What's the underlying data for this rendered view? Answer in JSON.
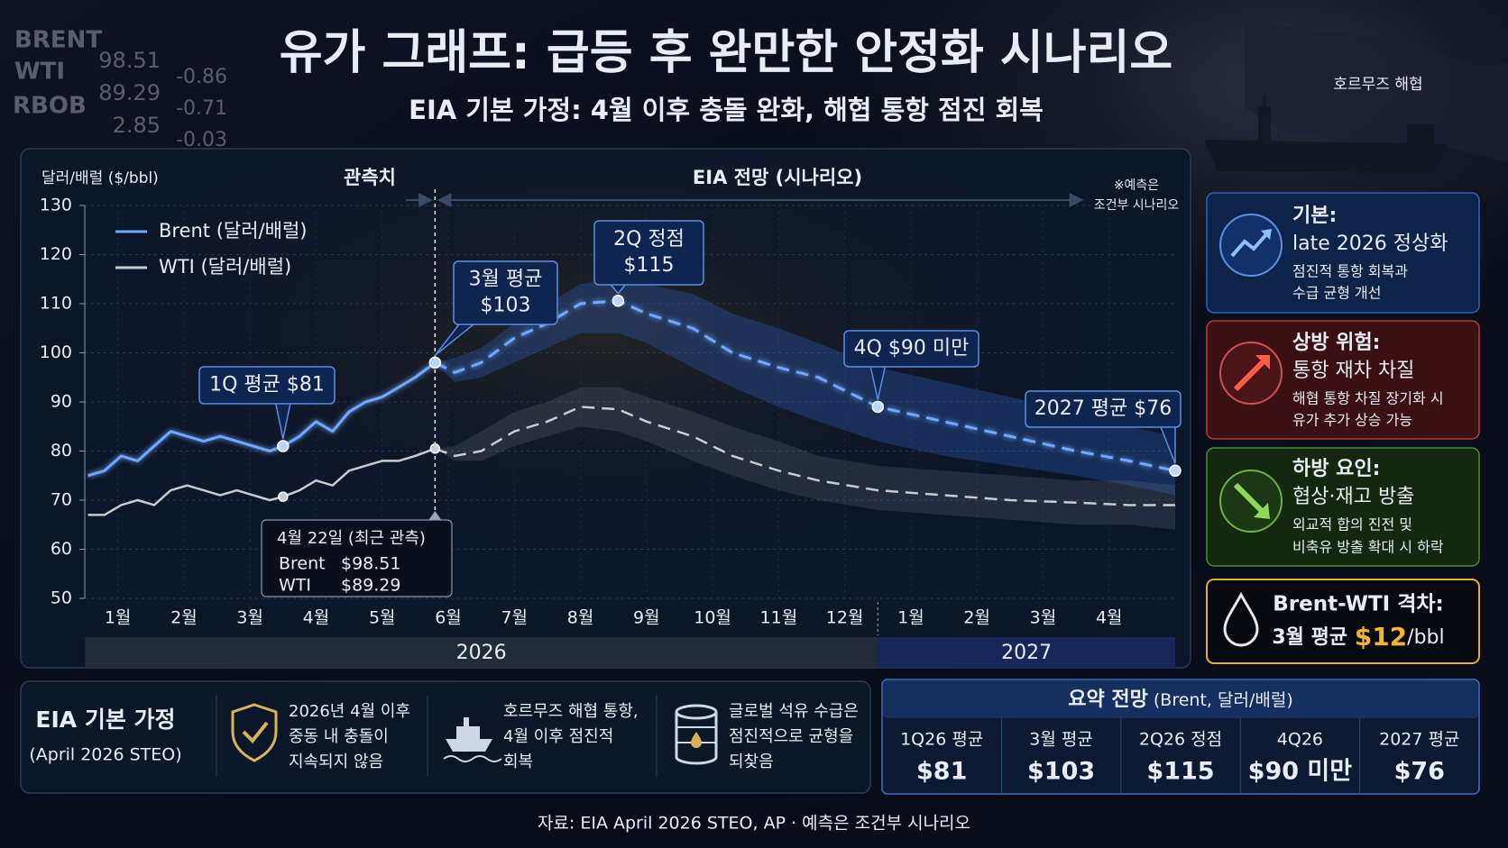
{
  "header": {
    "title": "유가 그래프: 급등 후 완만한 안정화 시나리오",
    "subtitle": "EIA 기본 가정: 4월 이후 충돌 완화, 해협 통항 점진 회복",
    "map_label": "호르무즈 해협"
  },
  "ticker": {
    "names": [
      "BRENT",
      "WTI",
      "RBOB"
    ],
    "prices": [
      "98.51",
      "89.29",
      "2.85"
    ],
    "changes": [
      "-0.86",
      "-0.71",
      "-0.03"
    ]
  },
  "chart_data": {
    "type": "line",
    "y_label": "달러/배럴 ($/bbl)",
    "observed_label": "관측치",
    "forecast_label": "EIA 전망 (시나리오)",
    "note": [
      "※예측은",
      "조건부 시나리오"
    ],
    "forecast_start": 5.8,
    "x": [
      0.55,
      0.8,
      1.05,
      1.3,
      1.55,
      1.8,
      2.05,
      2.3,
      2.55,
      2.8,
      3.05,
      3.3,
      3.5,
      3.75,
      4.0,
      4.25,
      4.5,
      4.75,
      5.0,
      5.25,
      5.5,
      5.8,
      6.1,
      6.5,
      7.0,
      7.5,
      8.0,
      8.57,
      9.0,
      9.7,
      10.3,
      11.0,
      11.6,
      12.5,
      13.5,
      14.5,
      15.5,
      16.3,
      17.0
    ],
    "xlim": [
      0.5,
      17.0
    ],
    "xticks": [
      {
        "value": 1,
        "label": "1월"
      },
      {
        "value": 2,
        "label": "2월"
      },
      {
        "value": 3,
        "label": "3월"
      },
      {
        "value": 4,
        "label": "4월"
      },
      {
        "value": 5,
        "label": "5월"
      },
      {
        "value": 6,
        "label": "6월"
      },
      {
        "value": 7,
        "label": "7월"
      },
      {
        "value": 8,
        "label": "8월"
      },
      {
        "value": 9,
        "label": "9월"
      },
      {
        "value": 10,
        "label": "10월"
      },
      {
        "value": 11,
        "label": "11월"
      },
      {
        "value": 12,
        "label": "12월"
      },
      {
        "value": 13,
        "label": "1월"
      },
      {
        "value": 14,
        "label": "2월"
      },
      {
        "value": 15,
        "label": "3월"
      },
      {
        "value": 16,
        "label": "4월"
      }
    ],
    "year_bands": [
      {
        "label": "2026",
        "from": 0.5,
        "to": 12.5
      },
      {
        "label": "2027",
        "from": 12.5,
        "to": 17.0
      }
    ],
    "ylim": [
      50,
      130
    ],
    "yticks": [
      50,
      60,
      70,
      80,
      90,
      100,
      110,
      120,
      130
    ],
    "grid": true,
    "legend": "upper left",
    "series": [
      {
        "name": "Brent (달러/배럴)",
        "color": "#6fa8ff",
        "values": [
          75,
          76,
          79,
          78,
          81,
          84,
          83,
          82,
          83,
          82,
          81,
          80,
          81,
          83,
          86,
          84,
          88,
          90,
          91,
          93,
          95,
          98,
          96,
          98,
          103,
          106,
          110,
          110.6,
          108,
          105,
          100,
          97,
          95,
          89,
          86,
          83,
          80,
          78,
          76
        ],
        "band_upper": [
          null,
          null,
          null,
          null,
          null,
          null,
          null,
          null,
          null,
          null,
          null,
          null,
          null,
          null,
          null,
          null,
          null,
          null,
          null,
          null,
          null,
          98,
          99,
          101,
          106,
          110,
          114,
          115,
          114,
          112,
          108,
          105,
          102,
          97,
          94,
          91,
          88,
          85,
          83
        ],
        "band_lower": [
          null,
          null,
          null,
          null,
          null,
          null,
          null,
          null,
          null,
          null,
          null,
          null,
          null,
          null,
          null,
          null,
          null,
          null,
          null,
          null,
          null,
          98,
          94,
          95,
          98,
          101,
          104,
          104,
          102,
          97,
          93,
          89,
          86,
          82,
          79,
          77,
          75,
          73,
          71
        ]
      },
      {
        "name": "WTI (달러/배럴)",
        "color": "#c9cbd0",
        "values": [
          67,
          67,
          69,
          70,
          69,
          72,
          73,
          72,
          71,
          72,
          71,
          70,
          70.7,
          72,
          74,
          73,
          76,
          77,
          78,
          78,
          79,
          80.5,
          79,
          80,
          84,
          86,
          89,
          88.5,
          86,
          83,
          79,
          76,
          74,
          72,
          71,
          70,
          69.5,
          69,
          69
        ],
        "band_upper": [
          null,
          null,
          null,
          null,
          null,
          null,
          null,
          null,
          null,
          null,
          null,
          null,
          null,
          null,
          null,
          null,
          null,
          null,
          null,
          null,
          null,
          80.5,
          81,
          84,
          88,
          90,
          93,
          93,
          91,
          88,
          85,
          82,
          79,
          77,
          76,
          75,
          74,
          74,
          73
        ],
        "band_lower": [
          null,
          null,
          null,
          null,
          null,
          null,
          null,
          null,
          null,
          null,
          null,
          null,
          null,
          null,
          null,
          null,
          null,
          null,
          null,
          null,
          null,
          80.5,
          78,
          78,
          81,
          83,
          85,
          84,
          82,
          78,
          75,
          72,
          70,
          68,
          67,
          66,
          65,
          65,
          64
        ]
      }
    ],
    "annotations": [
      [
        "1Q 평균 $81"
      ],
      [
        "3월 평균",
        "$103"
      ],
      [
        "2Q 정점",
        "$115"
      ],
      [
        "4Q $90 미만"
      ],
      [
        "2027 평균 $76"
      ]
    ],
    "tooltip": {
      "title": "4월 22일 (최근 관측)",
      "rows": [
        [
          "Brent",
          "$98.51"
        ],
        [
          "WTI",
          "$89.29"
        ]
      ]
    }
  },
  "cards": [
    {
      "title": "기본:",
      "headline": "late 2026 정상화",
      "lines": [
        "점진적 통항 회복과",
        "수급 균형 개선"
      ]
    },
    {
      "title": "상방 위험:",
      "headline": "통항 재차 차질",
      "lines": [
        "해협 통항 차질 장기화 시",
        "유가 추가 상승 가능"
      ]
    },
    {
      "title": "하방 요인:",
      "headline": "협상·재고 방출",
      "lines": [
        "외교적 합의 진전 및",
        "비축유 방출 확대 시 하락"
      ]
    }
  ],
  "spread": {
    "title": "Brent-WTI 격차:",
    "prefix": "3월 평균 ",
    "value": "$12",
    "unit": "/bbl"
  },
  "assumptions": {
    "title": "EIA 기본 가정",
    "source": "(April 2026 STEO)",
    "items": [
      [
        "2026년 4월 이후",
        "중동 내 충돌이",
        "지속되지 않음"
      ],
      [
        "호르무즈 해협 통항,",
        "4월 이후 점진적",
        "회복"
      ],
      [
        "글로벌 석유 수급은",
        "점진적으로 균형을",
        "되찾음"
      ]
    ]
  },
  "summary": {
    "title": "요약 전망",
    "subtitle": "(Brent, 달러/배럴)",
    "headers": [
      "1Q26 평균",
      "3월 평균",
      "2Q26 정점",
      "4Q26",
      "2027 평균"
    ],
    "values": [
      "$81",
      "$103",
      "$115",
      "$90 미만",
      "$76"
    ]
  },
  "footer": "자료: EIA April 2026 STEO, AP · 예측은 조건부 시나리오"
}
